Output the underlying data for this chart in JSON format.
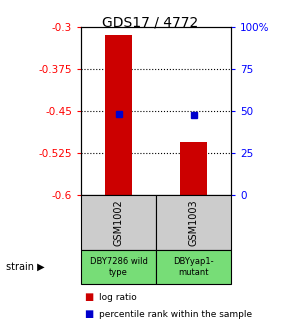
{
  "title": "GDS17 / 4772",
  "samples": [
    "GSM1002",
    "GSM1003"
  ],
  "strains": [
    "DBY7286 wild\ntype",
    "DBYyap1-\nmutant"
  ],
  "bar_bottoms": [
    -0.6,
    -0.6
  ],
  "bar_tops": [
    -0.315,
    -0.505
  ],
  "bar_color": "#cc0000",
  "percentile_values": [
    -0.455,
    -0.458
  ],
  "percentile_color": "#0000cc",
  "ylim_left": [
    -0.6,
    -0.3
  ],
  "yticks_left": [
    -0.6,
    -0.525,
    -0.45,
    -0.375,
    -0.3
  ],
  "ytick_labels_left": [
    "-0.6",
    "-0.525",
    "-0.45",
    "-0.375",
    "-0.3"
  ],
  "ylim_right": [
    0,
    100
  ],
  "yticks_right": [
    0,
    25,
    50,
    75,
    100
  ],
  "ytick_labels_right": [
    "0",
    "25",
    "50",
    "75",
    "100%"
  ],
  "hlines": [
    -0.375,
    -0.45,
    -0.525
  ],
  "sample_box_color": "#cccccc",
  "strain_box_color": "#77dd77",
  "legend_red_label": "log ratio",
  "legend_blue_label": "percentile rank within the sample",
  "bar_width": 0.35,
  "xlim": [
    -0.5,
    1.5
  ]
}
